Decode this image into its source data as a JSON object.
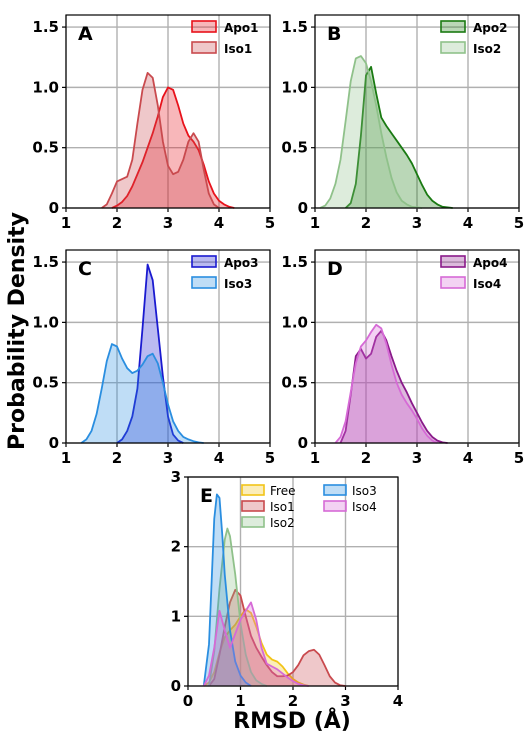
{
  "ylabel": "Probability Density",
  "xlabel": "RMSD (Å)",
  "chart_data": [
    {
      "type": "area",
      "panel_label": "A",
      "xlim": [
        1,
        5
      ],
      "ylim": [
        0,
        1.6
      ],
      "xticks": [
        "1",
        "2",
        "3",
        "4",
        "5"
      ],
      "yticks": [
        "0",
        "0.5",
        "1.0",
        "1.5"
      ],
      "legend_position": "top-right",
      "grid": true,
      "series": [
        {
          "name": "Apo1",
          "color": "#e8121b",
          "x": [
            1.9,
            2.0,
            2.1,
            2.2,
            2.3,
            2.4,
            2.5,
            2.6,
            2.7,
            2.8,
            2.9,
            3.0,
            3.1,
            3.2,
            3.3,
            3.4,
            3.5,
            3.6,
            3.7,
            3.8,
            3.9,
            4.0,
            4.1,
            4.2,
            4.3
          ],
          "y": [
            0,
            0.02,
            0.05,
            0.1,
            0.18,
            0.28,
            0.38,
            0.5,
            0.62,
            0.76,
            0.92,
            1.0,
            0.98,
            0.85,
            0.7,
            0.6,
            0.55,
            0.48,
            0.36,
            0.22,
            0.12,
            0.06,
            0.03,
            0.01,
            0
          ]
        },
        {
          "name": "Iso1",
          "color": "#c94a4e",
          "x": [
            1.7,
            1.8,
            1.9,
            2.0,
            2.1,
            2.2,
            2.3,
            2.4,
            2.5,
            2.6,
            2.7,
            2.8,
            2.9,
            3.0,
            3.1,
            3.2,
            3.3,
            3.4,
            3.5,
            3.6,
            3.7,
            3.8,
            3.9,
            4.0
          ],
          "y": [
            0,
            0.03,
            0.12,
            0.22,
            0.24,
            0.26,
            0.4,
            0.7,
            0.98,
            1.12,
            1.08,
            0.85,
            0.55,
            0.35,
            0.28,
            0.3,
            0.4,
            0.55,
            0.62,
            0.55,
            0.32,
            0.12,
            0.03,
            0
          ]
        }
      ]
    },
    {
      "type": "area",
      "panel_label": "B",
      "xlim": [
        1,
        5
      ],
      "ylim": [
        0,
        1.6
      ],
      "xticks": [
        "1",
        "2",
        "3",
        "4",
        "5"
      ],
      "yticks": [
        "0",
        "0.5",
        "1.0",
        "1.5"
      ],
      "legend_position": "top-right",
      "grid": true,
      "series": [
        {
          "name": "Apo2",
          "color": "#1a7a12",
          "x": [
            1.6,
            1.7,
            1.8,
            1.9,
            2.0,
            2.1,
            2.2,
            2.3,
            2.4,
            2.5,
            2.6,
            2.7,
            2.8,
            2.9,
            3.0,
            3.1,
            3.2,
            3.3,
            3.4,
            3.5,
            3.6,
            3.7
          ],
          "y": [
            0,
            0.04,
            0.2,
            0.6,
            1.1,
            1.17,
            0.95,
            0.75,
            0.68,
            0.62,
            0.56,
            0.5,
            0.44,
            0.37,
            0.28,
            0.19,
            0.11,
            0.06,
            0.03,
            0.01,
            0.005,
            0
          ]
        },
        {
          "name": "Iso2",
          "color": "#8fc18a",
          "x": [
            1.1,
            1.2,
            1.3,
            1.4,
            1.5,
            1.6,
            1.7,
            1.8,
            1.9,
            2.0,
            2.1,
            2.2,
            2.3,
            2.4,
            2.5,
            2.6,
            2.7,
            2.8,
            2.9,
            3.0,
            3.1
          ],
          "y": [
            0,
            0.02,
            0.08,
            0.2,
            0.4,
            0.72,
            1.05,
            1.24,
            1.26,
            1.2,
            1.05,
            0.85,
            0.62,
            0.42,
            0.25,
            0.13,
            0.06,
            0.03,
            0.01,
            0.005,
            0
          ]
        }
      ]
    },
    {
      "type": "area",
      "panel_label": "C",
      "xlim": [
        1,
        5
      ],
      "ylim": [
        0,
        1.6
      ],
      "xticks": [
        "1",
        "2",
        "3",
        "4",
        "5"
      ],
      "yticks": [
        "0",
        "0.5",
        "1.0",
        "1.5"
      ],
      "legend_position": "top-right",
      "grid": true,
      "series": [
        {
          "name": "Apo3",
          "color": "#1a1ad0",
          "x": [
            2.0,
            2.1,
            2.2,
            2.3,
            2.4,
            2.5,
            2.6,
            2.7,
            2.8,
            2.9,
            3.0,
            3.1,
            3.2,
            3.3
          ],
          "y": [
            0,
            0.03,
            0.1,
            0.22,
            0.45,
            0.95,
            1.48,
            1.35,
            0.95,
            0.55,
            0.22,
            0.07,
            0.02,
            0
          ]
        },
        {
          "name": "Iso3",
          "color": "#2a8ee0",
          "x": [
            1.3,
            1.4,
            1.5,
            1.6,
            1.7,
            1.8,
            1.9,
            2.0,
            2.1,
            2.2,
            2.3,
            2.4,
            2.5,
            2.6,
            2.7,
            2.8,
            2.9,
            3.0,
            3.1,
            3.2,
            3.3,
            3.4,
            3.5,
            3.6,
            3.7
          ],
          "y": [
            0,
            0.03,
            0.1,
            0.24,
            0.45,
            0.68,
            0.82,
            0.8,
            0.7,
            0.62,
            0.58,
            0.6,
            0.65,
            0.72,
            0.74,
            0.66,
            0.5,
            0.32,
            0.18,
            0.1,
            0.05,
            0.03,
            0.015,
            0.005,
            0
          ]
        }
      ]
    },
    {
      "type": "area",
      "panel_label": "D",
      "xlim": [
        1,
        5
      ],
      "ylim": [
        0,
        1.6
      ],
      "xticks": [
        "1",
        "2",
        "3",
        "4",
        "5"
      ],
      "yticks": [
        "0",
        "0.5",
        "1.0",
        "1.5"
      ],
      "legend_position": "top-right",
      "grid": true,
      "series": [
        {
          "name": "Apo4",
          "color": "#8a1a8a",
          "x": [
            1.5,
            1.6,
            1.7,
            1.8,
            1.9,
            2.0,
            2.1,
            2.2,
            2.3,
            2.4,
            2.5,
            2.6,
            2.7,
            2.8,
            2.9,
            3.0,
            3.1,
            3.2,
            3.3,
            3.4,
            3.5,
            3.6
          ],
          "y": [
            0,
            0.1,
            0.4,
            0.72,
            0.78,
            0.7,
            0.74,
            0.88,
            0.93,
            0.85,
            0.72,
            0.6,
            0.5,
            0.42,
            0.33,
            0.25,
            0.17,
            0.1,
            0.05,
            0.02,
            0.005,
            0
          ]
        },
        {
          "name": "Iso4",
          "color": "#d66ad6",
          "x": [
            1.4,
            1.5,
            1.6,
            1.7,
            1.8,
            1.9,
            2.0,
            2.1,
            2.2,
            2.3,
            2.4,
            2.5,
            2.6,
            2.7,
            2.8,
            2.9,
            3.0,
            3.1,
            3.2,
            3.3,
            3.4
          ],
          "y": [
            0,
            0.05,
            0.18,
            0.42,
            0.66,
            0.8,
            0.85,
            0.92,
            0.98,
            0.95,
            0.82,
            0.65,
            0.5,
            0.4,
            0.33,
            0.27,
            0.2,
            0.12,
            0.06,
            0.02,
            0
          ]
        }
      ]
    },
    {
      "type": "area",
      "panel_label": "E",
      "xlim": [
        0,
        4
      ],
      "ylim": [
        0,
        3
      ],
      "xticks": [
        "0",
        "1",
        "2",
        "3",
        "4"
      ],
      "yticks": [
        "0",
        "1",
        "2",
        "3"
      ],
      "legend_position": "top-right",
      "grid": true,
      "series": [
        {
          "name": "Free",
          "color": "#f2c418",
          "x": [
            0.3,
            0.4,
            0.5,
            0.6,
            0.7,
            0.8,
            0.9,
            1.0,
            1.1,
            1.2,
            1.3,
            1.4,
            1.5,
            1.6,
            1.7,
            1.8,
            1.9,
            2.0,
            2.1,
            2.2,
            2.3
          ],
          "y": [
            0,
            0.05,
            0.2,
            0.48,
            0.7,
            0.8,
            0.88,
            1.0,
            1.1,
            1.05,
            0.85,
            0.62,
            0.45,
            0.38,
            0.35,
            0.28,
            0.18,
            0.1,
            0.05,
            0.02,
            0
          ]
        },
        {
          "name": "Iso1",
          "color": "#c94a4e",
          "x": [
            0.4,
            0.5,
            0.6,
            0.7,
            0.8,
            0.9,
            1.0,
            1.1,
            1.2,
            1.3,
            1.4,
            1.5,
            1.6,
            1.7,
            1.8,
            1.9,
            2.0,
            2.1,
            2.2,
            2.3,
            2.4,
            2.5,
            2.6,
            2.7,
            2.8,
            2.9,
            3.0
          ],
          "y": [
            0,
            0.1,
            0.45,
            0.85,
            1.2,
            1.38,
            1.3,
            1.0,
            0.72,
            0.55,
            0.42,
            0.3,
            0.2,
            0.14,
            0.14,
            0.15,
            0.2,
            0.3,
            0.44,
            0.5,
            0.52,
            0.45,
            0.3,
            0.14,
            0.05,
            0.01,
            0
          ]
        },
        {
          "name": "Iso2",
          "color": "#8fc18a",
          "x": [
            0.4,
            0.5,
            0.6,
            0.7,
            0.75,
            0.8,
            0.9,
            1.0,
            1.1,
            1.2,
            1.3,
            1.4,
            1.5
          ],
          "y": [
            0,
            0.5,
            1.4,
            2.1,
            2.26,
            2.15,
            1.6,
            0.9,
            0.45,
            0.2,
            0.08,
            0.03,
            0
          ]
        },
        {
          "name": "Iso3",
          "color": "#2a8ee0",
          "x": [
            0.3,
            0.4,
            0.45,
            0.5,
            0.55,
            0.6,
            0.65,
            0.7,
            0.8,
            0.9,
            1.0,
            1.1,
            1.2
          ],
          "y": [
            0,
            0.6,
            1.5,
            2.4,
            2.75,
            2.7,
            2.2,
            1.6,
            0.8,
            0.35,
            0.15,
            0.05,
            0
          ]
        },
        {
          "name": "Iso4",
          "color": "#d66ad6",
          "x": [
            0.3,
            0.4,
            0.5,
            0.6,
            0.7,
            0.8,
            0.9,
            1.0,
            1.1,
            1.2,
            1.3,
            1.4,
            1.5,
            1.6,
            1.7,
            1.8,
            1.9,
            2.0,
            2.1,
            2.2,
            2.3
          ],
          "y": [
            0,
            0.15,
            0.55,
            1.08,
            0.8,
            0.55,
            0.75,
            0.95,
            1.08,
            1.2,
            0.95,
            0.55,
            0.32,
            0.28,
            0.24,
            0.18,
            0.12,
            0.07,
            0.03,
            0.01,
            0
          ]
        }
      ]
    }
  ]
}
